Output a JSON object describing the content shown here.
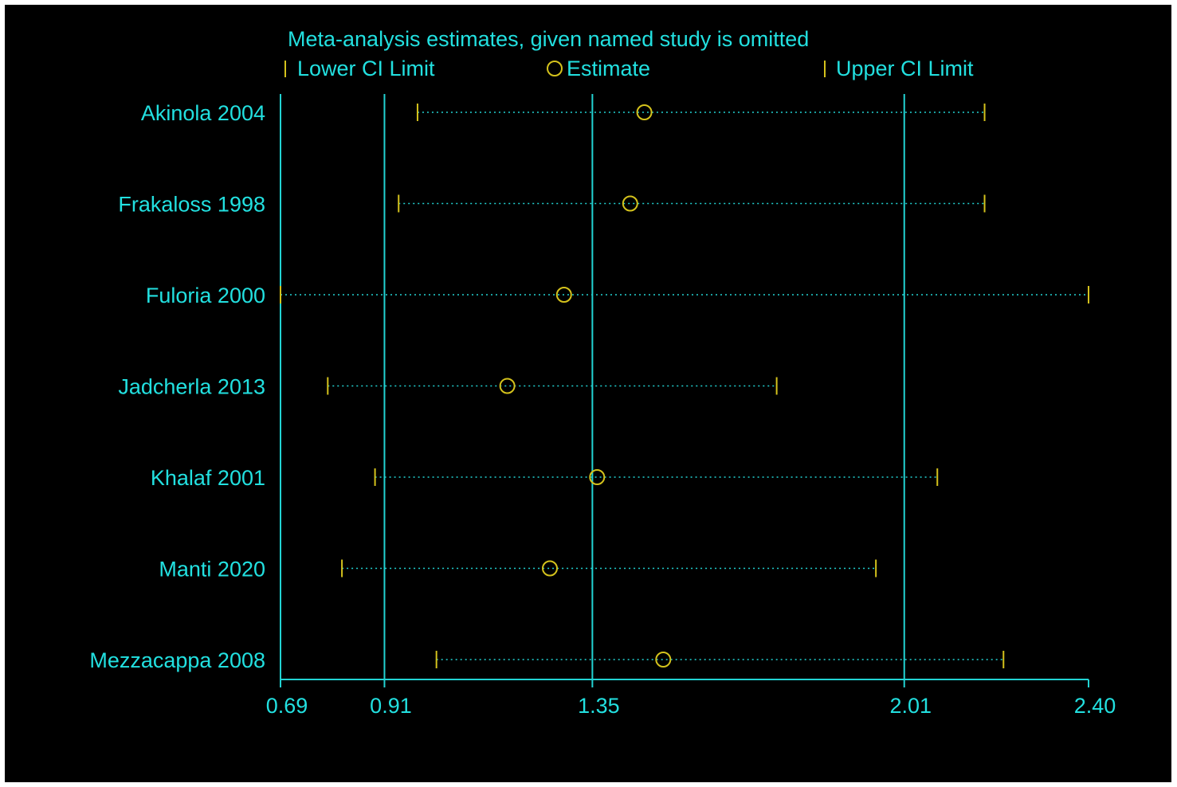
{
  "chart_data": {
    "type": "forest",
    "title": "Meta-analysis estimates, given named study is omitted",
    "legend": {
      "placement": "top",
      "lower_label": "Lower CI Limit",
      "estimate_label": "Estimate",
      "upper_label": "Upper CI Limit"
    },
    "x_ticks": [
      "0.69",
      "0.91",
      "1.35",
      "2.01",
      "2.40"
    ],
    "x_tick_values": [
      0.69,
      0.91,
      1.35,
      2.01,
      2.4
    ],
    "xlim": [
      0.69,
      2.4
    ],
    "reference_lines": [
      0.69,
      0.91,
      1.35,
      2.01
    ],
    "studies": [
      {
        "label": "Akinola 2004",
        "lower": 0.98,
        "estimate": 1.46,
        "upper": 2.18
      },
      {
        "label": "Frakaloss 1998",
        "lower": 0.94,
        "estimate": 1.43,
        "upper": 2.18
      },
      {
        "label": "Fuloria 2000",
        "lower": 0.69,
        "estimate": 1.29,
        "upper": 2.4
      },
      {
        "label": "Jadcherla 2013",
        "lower": 0.79,
        "estimate": 1.17,
        "upper": 1.74
      },
      {
        "label": "Khalaf 2001",
        "lower": 0.89,
        "estimate": 1.36,
        "upper": 2.08
      },
      {
        "label": "Manti 2020",
        "lower": 0.82,
        "estimate": 1.26,
        "upper": 1.95
      },
      {
        "label": "Mezzacappa 2008",
        "lower": 1.02,
        "estimate": 1.5,
        "upper": 2.22
      }
    ]
  },
  "colors": {
    "background": "#000000",
    "axis": "#22d3d3",
    "marker": "#d4c21c",
    "text": "#22e0e0"
  }
}
